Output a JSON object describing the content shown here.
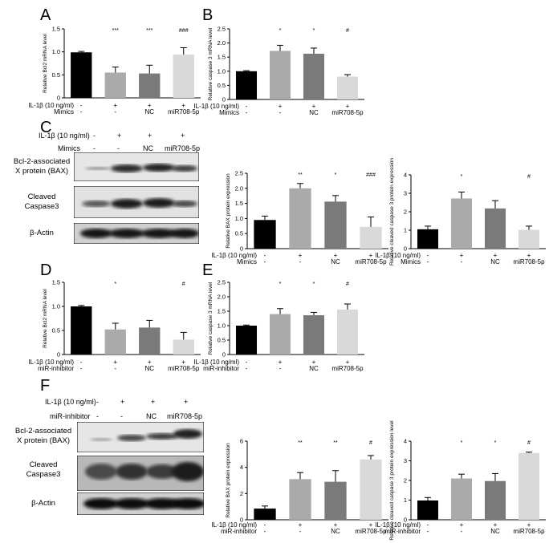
{
  "panel_letters": {
    "A": "A",
    "B": "B",
    "C": "C",
    "D": "D",
    "E": "E",
    "F": "F"
  },
  "colors": {
    "black": "#000000",
    "gray1": "#aaaaaa",
    "gray2": "#7a7a7a",
    "light": "#d9d9d9"
  },
  "row_labels": {
    "il1b": "IL-1β (10 ng/ml)",
    "mimics": "Mimics",
    "inhibitor": "miR-inhibitor"
  },
  "condition_marks": {
    "il1b": [
      "-",
      "+",
      "+",
      "+"
    ],
    "reagent": [
      "-",
      "-",
      "NC",
      "miR708-5p"
    ]
  },
  "blot_labels": {
    "bax_line1": "Bcl-2-associated",
    "bax_line2": "X protein (BAX)",
    "casp_line1": "Cleaved",
    "casp_line2": "Caspase3",
    "actin": "β-Actin"
  },
  "chart_data": [
    {
      "id": "A",
      "type": "bar",
      "ylabel": "Relative Bcl2 mRNA level",
      "ylim": [
        0,
        1.5
      ],
      "yticks": [
        0,
        0.5,
        1.0,
        1.5
      ],
      "values": [
        0.99,
        0.55,
        0.53,
        0.94
      ],
      "errors": [
        0.02,
        0.12,
        0.18,
        0.15
      ],
      "annotations": [
        "",
        "***",
        "***",
        "###"
      ],
      "reagent_label": "mimics"
    },
    {
      "id": "B",
      "type": "bar",
      "ylabel": "Relative caspase 3 mRNA level",
      "ylim": [
        0,
        2.5
      ],
      "yticks": [
        0,
        0.5,
        1.0,
        1.5,
        2.0,
        2.5
      ],
      "values": [
        1.0,
        1.72,
        1.62,
        0.81
      ],
      "errors": [
        0.02,
        0.2,
        0.2,
        0.07
      ],
      "annotations": [
        "",
        "*",
        "*",
        "#"
      ],
      "reagent_label": "mimics"
    },
    {
      "id": "C1",
      "type": "bar",
      "ylabel": "Relative BAX protein expression",
      "ylim": [
        0,
        2.5
      ],
      "yticks": [
        0,
        0.5,
        1.0,
        1.5,
        2.0,
        2.5
      ],
      "values": [
        0.95,
        2.0,
        1.56,
        0.72
      ],
      "errors": [
        0.13,
        0.16,
        0.2,
        0.33
      ],
      "annotations": [
        "",
        "**",
        "*",
        "###"
      ],
      "reagent_label": "mimics"
    },
    {
      "id": "C2",
      "type": "bar",
      "ylabel": "Relative cleaved caspase 3 protein expression",
      "ylim": [
        0,
        4
      ],
      "yticks": [
        0,
        1,
        2,
        3,
        4
      ],
      "values": [
        1.05,
        2.72,
        2.18,
        1.02
      ],
      "errors": [
        0.17,
        0.35,
        0.42,
        0.2
      ],
      "annotations": [
        "",
        "*",
        "",
        "#"
      ],
      "reagent_label": "mimics"
    },
    {
      "id": "D",
      "type": "bar",
      "ylabel": "Relative Bcl2 mRNA level",
      "ylim": [
        0,
        1.5
      ],
      "yticks": [
        0,
        0.5,
        1.0,
        1.5
      ],
      "values": [
        1.0,
        0.52,
        0.56,
        0.31
      ],
      "errors": [
        0.02,
        0.13,
        0.15,
        0.15
      ],
      "annotations": [
        "",
        "*",
        "",
        "#"
      ],
      "reagent_label": "inhibitor"
    },
    {
      "id": "E",
      "type": "bar",
      "ylabel": "Relative caspase 3 mRNA level",
      "ylim": [
        0,
        2.5
      ],
      "yticks": [
        0,
        0.5,
        1.0,
        1.5,
        2.0,
        2.5
      ],
      "values": [
        1.0,
        1.4,
        1.36,
        1.56
      ],
      "errors": [
        0.02,
        0.19,
        0.1,
        0.19
      ],
      "annotations": [
        "",
        "*",
        "*",
        "#"
      ],
      "reagent_label": "inhibitor"
    },
    {
      "id": "F1",
      "type": "bar",
      "ylabel": "Relative BAX protein expression",
      "ylim": [
        0,
        6
      ],
      "yticks": [
        0,
        2,
        4,
        6
      ],
      "values": [
        0.85,
        3.1,
        2.9,
        4.6
      ],
      "errors": [
        0.2,
        0.5,
        0.85,
        0.3
      ],
      "annotations": [
        "",
        "**",
        "**",
        "#"
      ],
      "reagent_label": "inhibitor"
    },
    {
      "id": "F2",
      "type": "bar",
      "ylabel": "Relative cleaved caspase 3 protein expression level",
      "ylim": [
        0,
        4
      ],
      "yticks": [
        0,
        1,
        2,
        3,
        4
      ],
      "values": [
        0.98,
        2.1,
        1.97,
        3.4
      ],
      "errors": [
        0.15,
        0.22,
        0.38,
        0.04
      ],
      "annotations": [
        "",
        "*",
        "*",
        "#"
      ],
      "reagent_label": "inhibitor"
    }
  ]
}
